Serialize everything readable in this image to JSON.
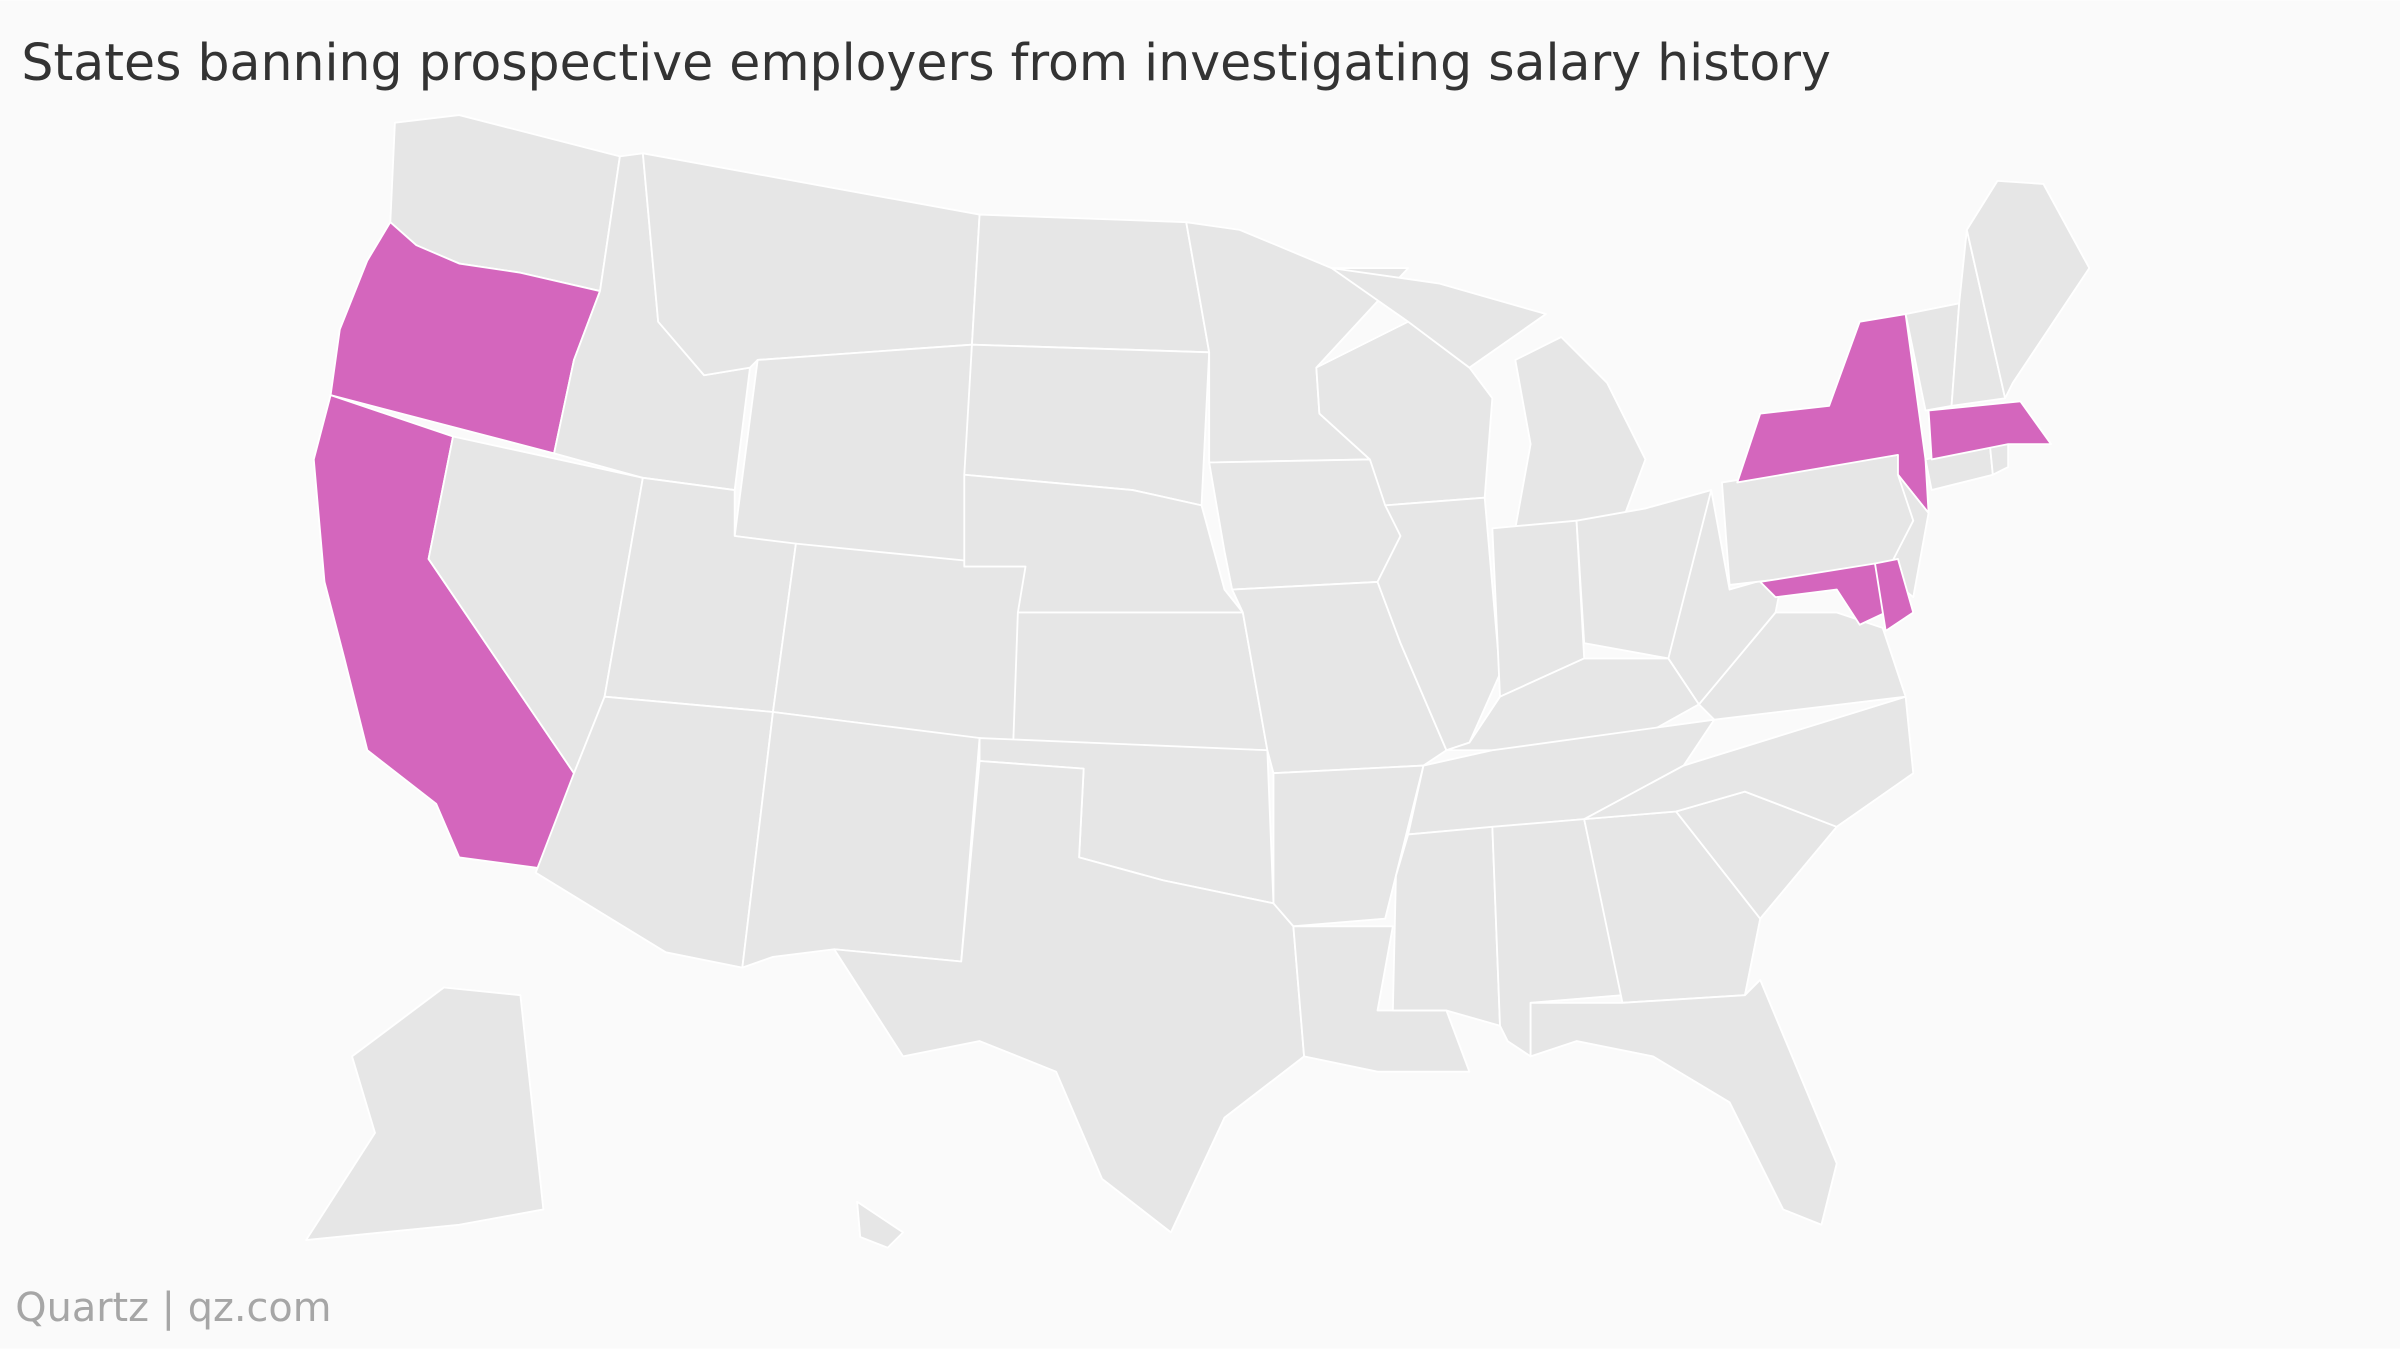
{
  "header": {
    "title": "States banning prospective employers from investigating salary history"
  },
  "footer": {
    "source": "Quartz | qz.com"
  },
  "map": {
    "highlight_color": "#d466bd",
    "base_color": "#e6e6e6",
    "border_color": "#ffffff",
    "background": "#fafafa"
  }
}
